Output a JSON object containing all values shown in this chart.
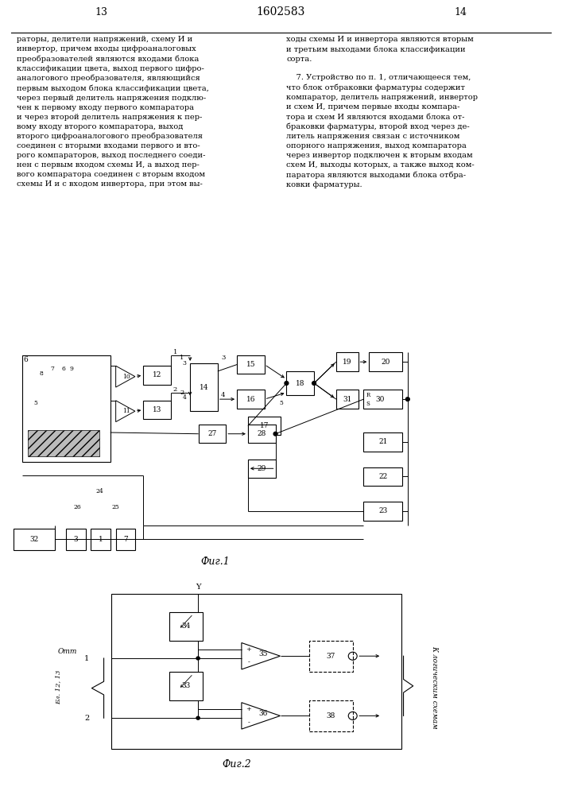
{
  "title": "1602583",
  "page_left": "13",
  "page_right": "14",
  "text_left": "раторы, делители напряжений, схему И и\nинвертор, причем входы цифроаналоговых\nпреобразователей являются входами блока\nклассификации цвета, выход первого цифро-\nаналогового преобразователя, являющийся\nпервым выходом блока классификации цвета,\nчерез первый делитель напряжения подклю-\nчен к первому входу первого компаратора\nи через второй делитель напряжения к пер-\nвому входу второго компаратора, выход\nвторого цифроаналогового преобразователя\nсоединен с вторыми входами первого и вто-\nрого компараторов, выход последнего соеди-\nнен с первым входом схемы И, а выход пер-\nвого компаратора соединен с вторым входом\nсхемы И и с входом инвертора, при этом вы-",
  "text_right": "ходы схемы И и инвертора являются вторым\nи третьим выходами блока классификации\nсорта.\n\n    7. Устройство по п. 1, отличающееся тем,\nчто блок отбраковки фарматуры содержит\nкомпаратор, делитель напряжений, инвертор\nи схем И, причем первые входы компара-\nтора и схем И являются входами блока от-\nбраковки фарматуры, второй вход через де-\nлитель напряжения связан с источником\nопорного напряжения, выход компаратора\nчерез инвертор подключен к вторым входам\nсхем И, выходы которых, а также выход ком-\nпаратора являются выходами блока отбра-\nковки фарматуры.",
  "fig1_caption": "Фиг.1",
  "fig2_caption": "Фиг.2",
  "background": "#ffffff",
  "line_color": "#000000"
}
